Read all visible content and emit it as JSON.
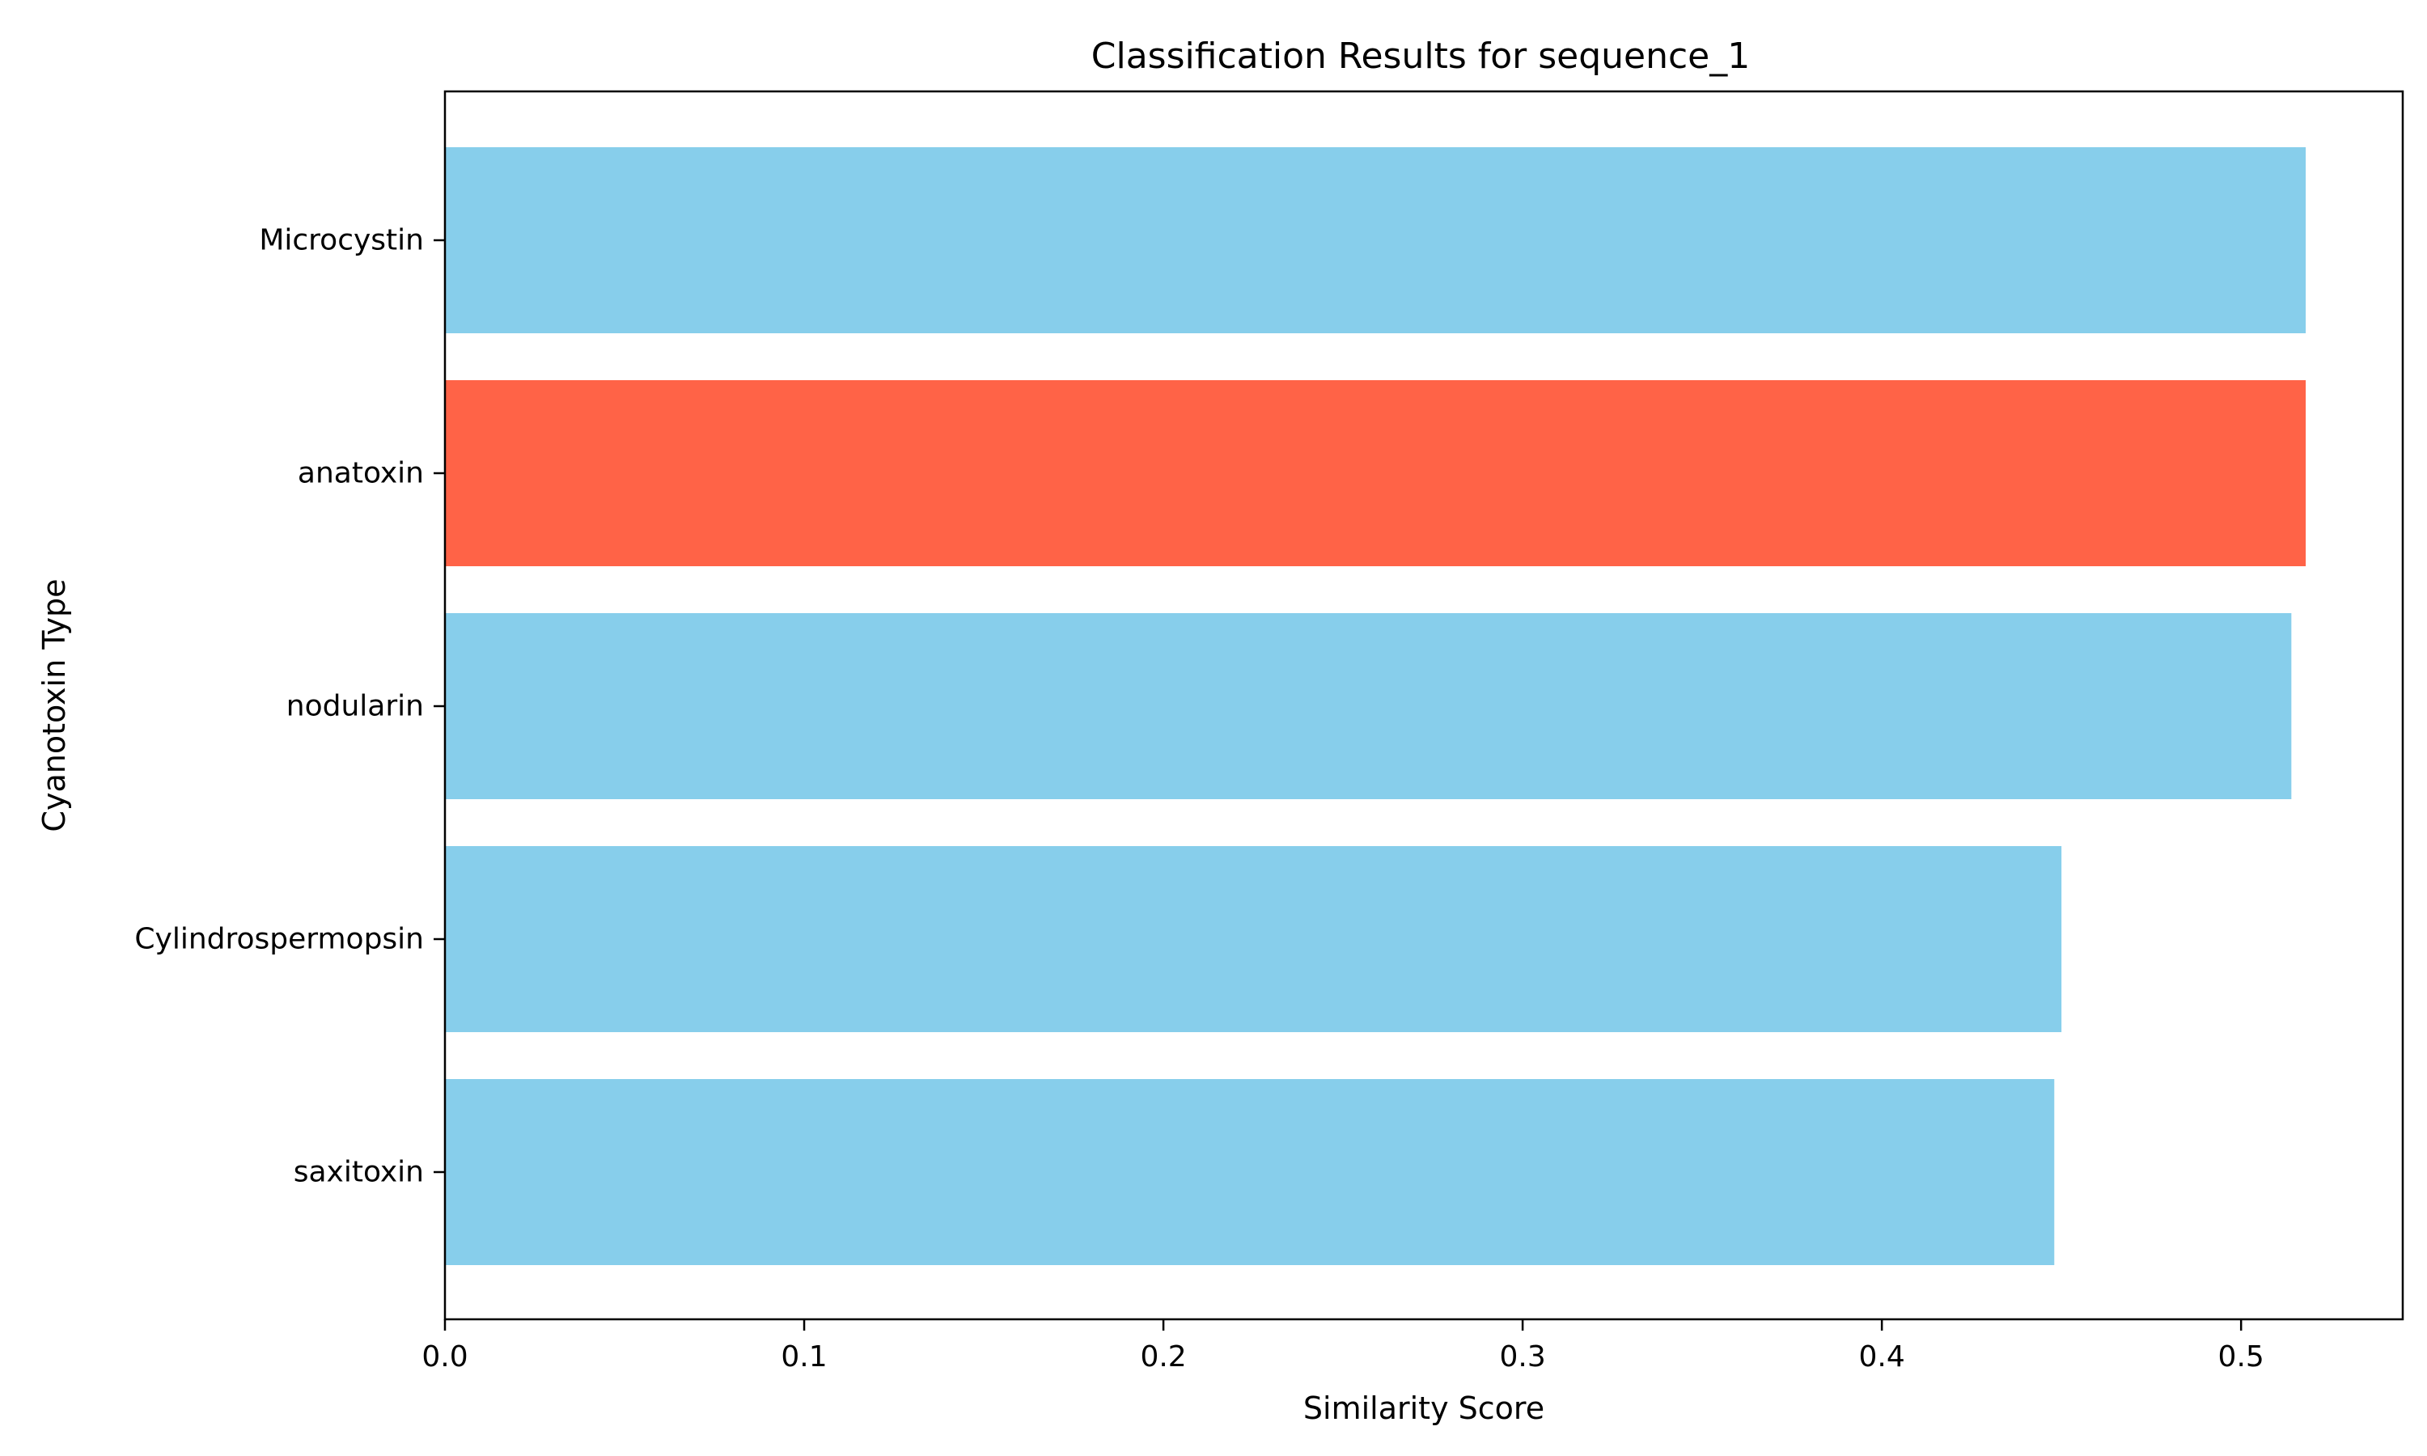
{
  "chart_data": {
    "type": "bar",
    "orientation": "horizontal",
    "title": "Classification Results for sequence_1",
    "xlabel": "Similarity Score",
    "ylabel": "Cyanotoxin Type",
    "categories": [
      "Microcystin",
      "anatoxin",
      "nodularin",
      "Cylindrospermopsin",
      "saxitoxin"
    ],
    "values": [
      0.518,
      0.518,
      0.514,
      0.45,
      0.448
    ],
    "bar_colors": [
      "#87CEEB",
      "#FF6347",
      "#87CEEB",
      "#87CEEB",
      "#87CEEB"
    ],
    "highlight_color": "#FF6347",
    "default_color": "#87CEEB",
    "xlim": [
      0,
      0.545
    ],
    "xticks": [
      0.0,
      0.1,
      0.2,
      0.3,
      0.4,
      0.5
    ],
    "xtick_labels": [
      "0.0",
      "0.1",
      "0.2",
      "0.3",
      "0.4",
      "0.5"
    ],
    "grid": false,
    "legend": "none"
  }
}
